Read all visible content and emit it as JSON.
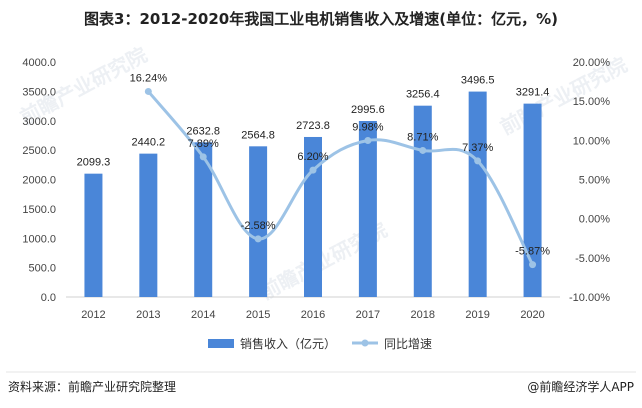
{
  "chart_data": {
    "type": "bar+line",
    "title": "图表3：2012-2020年我国工业电机销售收入及增速(单位：亿元，%)",
    "categories": [
      "2012",
      "2013",
      "2014",
      "2015",
      "2016",
      "2017",
      "2018",
      "2019",
      "2020"
    ],
    "series": [
      {
        "name": "销售收入（亿元）",
        "type": "bar",
        "axis": "left",
        "color": "#4a86d8",
        "values": [
          2099.3,
          2440.2,
          2632.8,
          2564.8,
          2723.8,
          2995.6,
          3256.4,
          3496.5,
          3291.4
        ],
        "labels": [
          "2099.3",
          "2440.2",
          "2632.8",
          "2564.8",
          "2723.8",
          "2995.6",
          "3256.4",
          "3496.5",
          "3291.4"
        ]
      },
      {
        "name": "同比增速",
        "type": "line",
        "axis": "right",
        "color": "#9dc3e6",
        "values": [
          null,
          16.24,
          7.89,
          -2.58,
          6.2,
          9.98,
          8.71,
          7.37,
          -5.87
        ],
        "labels": [
          "",
          "16.24%",
          "7.89%",
          "-2.58%",
          "6.20%",
          "9.98%",
          "8.71%",
          "7.37%",
          "-5.87%"
        ]
      }
    ],
    "y_left": {
      "min": 0,
      "max": 4000,
      "ticks": [
        "0.0",
        "500.0",
        "1000.0",
        "1500.0",
        "2000.0",
        "2500.0",
        "3000.0",
        "3500.0",
        "4000.0"
      ]
    },
    "y_right": {
      "min": -10,
      "max": 20,
      "ticks": [
        "-10.00%",
        "-5.00%",
        "0.00%",
        "5.00%",
        "10.00%",
        "15.00%",
        "20.00%"
      ]
    },
    "grid": false,
    "legend_position": "bottom"
  },
  "footer": {
    "source": "资料来源：前瞻产业研究院整理",
    "brand": "@前瞻经济学人APP"
  },
  "watermarks": [
    "前瞻产业研究院",
    "前瞻产业研究院",
    "前瞻产业研究院"
  ]
}
